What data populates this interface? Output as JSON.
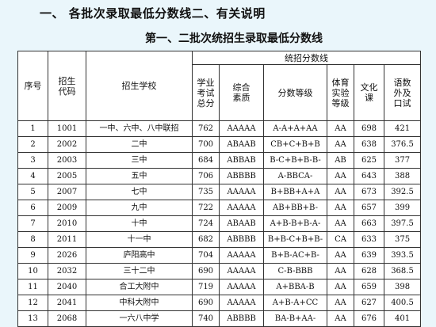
{
  "heading": "一、 各批次录取最低分数线二、有关说明",
  "table_title": "第一、二批次统招生录取最低分数线",
  "headers": {
    "index": "序号",
    "code": "招生代码",
    "school": "招生学校",
    "group": "统招分数线",
    "total": "学业考试总分",
    "quality": "综合素质",
    "grade": "分数等级",
    "pe": "体育实验等级",
    "culture": "文化课",
    "chinese": "语数外及口试"
  },
  "rows": [
    {
      "index": "1",
      "code": "1001",
      "school": "一中、六中、八中联招",
      "total": "762",
      "quality": "AAAAA",
      "grade": "A-A+A+AA",
      "pe": "AA",
      "culture": "698",
      "chinese": "421"
    },
    {
      "index": "2",
      "code": "2002",
      "school": "二中",
      "total": "700",
      "quality": "ABAAB",
      "grade": "CB+C+B+B",
      "pe": "AA",
      "culture": "638",
      "chinese": "376.5"
    },
    {
      "index": "3",
      "code": "2003",
      "school": "三中",
      "total": "684",
      "quality": "ABBAB",
      "grade": "B-C+B+B-B-",
      "pe": "AB",
      "culture": "625",
      "chinese": "377"
    },
    {
      "index": "4",
      "code": "2005",
      "school": "五中",
      "total": "706",
      "quality": "ABBBB",
      "grade": "A-BBCA-",
      "pe": "AA",
      "culture": "643",
      "chinese": "388"
    },
    {
      "index": "5",
      "code": "2007",
      "school": "七中",
      "total": "735",
      "quality": "AAAAA",
      "grade": "B+BB+A+A",
      "pe": "AA",
      "culture": "673",
      "chinese": "392.5"
    },
    {
      "index": "6",
      "code": "2009",
      "school": "九中",
      "total": "722",
      "quality": "AAAAA",
      "grade": "AB+BB+B-",
      "pe": "AA",
      "culture": "657",
      "chinese": "399"
    },
    {
      "index": "7",
      "code": "2010",
      "school": "十中",
      "total": "724",
      "quality": "ABAAB",
      "grade": "A+B-B+B-A-",
      "pe": "AA",
      "culture": "663",
      "chinese": "397.5"
    },
    {
      "index": "8",
      "code": "2011",
      "school": "十一中",
      "total": "682",
      "quality": "ABBBB",
      "grade": "B+B-C+B+B-",
      "pe": "CA",
      "culture": "633",
      "chinese": "375"
    },
    {
      "index": "9",
      "code": "2026",
      "school": "庐阳高中",
      "total": "704",
      "quality": "AAAAA",
      "grade": "B+B-AC+B-",
      "pe": "AA",
      "culture": "639",
      "chinese": "393.5"
    },
    {
      "index": "10",
      "code": "2032",
      "school": "三十二中",
      "total": "690",
      "quality": "AAAAA",
      "grade": "C-B-BBB",
      "pe": "AA",
      "culture": "628",
      "chinese": "368.5"
    },
    {
      "index": "11",
      "code": "2040",
      "school": "合工大附中",
      "total": "719",
      "quality": "AAAAA",
      "grade": "A+BBA-B",
      "pe": "AA",
      "culture": "659",
      "chinese": "398"
    },
    {
      "index": "12",
      "code": "2041",
      "school": "中科大附中",
      "total": "690",
      "quality": "AAAAA",
      "grade": "A+B-A+CC",
      "pe": "AA",
      "culture": "627",
      "chinese": "400.5"
    },
    {
      "index": "13",
      "code": "2068",
      "school": "一六八中学",
      "total": "740",
      "quality": "ABBBB",
      "grade": "BA-B+AA-",
      "pe": "AA",
      "culture": "676",
      "chinese": "401"
    }
  ]
}
